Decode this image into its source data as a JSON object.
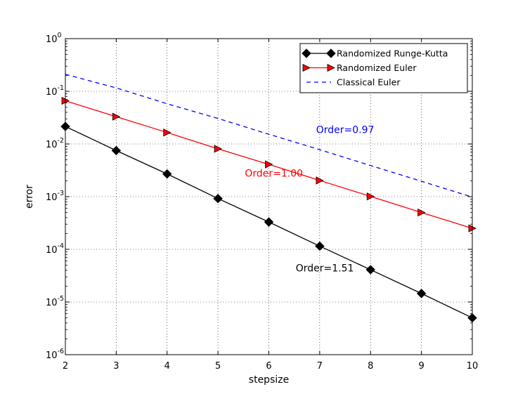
{
  "chart_data": {
    "type": "line",
    "title": "",
    "xlabel": "stepsize",
    "ylabel": "error",
    "xlim": [
      2,
      10
    ],
    "ylim": [
      1e-06,
      1
    ],
    "yscale": "log",
    "grid": true,
    "legend_position": "top-right",
    "x_ticks": [
      "2",
      "3",
      "4",
      "5",
      "6",
      "7",
      "8",
      "9",
      "10"
    ],
    "y_ticks": [
      {
        "base": "10",
        "exp": "-6",
        "value": 1e-06
      },
      {
        "base": "10",
        "exp": "-5",
        "value": 1e-05
      },
      {
        "base": "10",
        "exp": "-4",
        "value": 0.0001
      },
      {
        "base": "10",
        "exp": "-3",
        "value": 0.001
      },
      {
        "base": "10",
        "exp": "-2",
        "value": 0.01
      },
      {
        "base": "10",
        "exp": "-1",
        "value": 0.1
      },
      {
        "base": "10",
        "exp": "0",
        "value": 1
      }
    ],
    "x": [
      2,
      3,
      4,
      5,
      6,
      7,
      8,
      9,
      10
    ],
    "series": [
      {
        "name": "Randomized Runge-Kutta",
        "color": "#000000",
        "marker": "diamond",
        "linestyle": "solid",
        "values": [
          0.0215,
          0.0075,
          0.0027,
          0.00092,
          0.00033,
          0.000115,
          4.1e-05,
          1.45e-05,
          5e-06
        ]
      },
      {
        "name": "Randomized Euler",
        "color": "#ff0000",
        "marker": "triangle-right",
        "linestyle": "solid",
        "values": [
          0.066,
          0.033,
          0.0165,
          0.0081,
          0.0041,
          0.00203,
          0.00101,
          0.0005,
          0.00025
        ]
      },
      {
        "name": "Classical Euler",
        "color": "#0000ff",
        "marker": "none",
        "linestyle": "dashed",
        "values": [
          0.21,
          0.116,
          0.058,
          0.0305,
          0.0153,
          0.0078,
          0.0039,
          0.00196,
          0.00098
        ]
      }
    ],
    "annotations": [
      {
        "text": "Order=0.97",
        "color": "#0000ff",
        "x": 7.5,
        "y": 0.016
      },
      {
        "text": "Order=1.00",
        "color": "#ff0000",
        "x": 6.1,
        "y": 0.0024
      },
      {
        "text": "Order=1.51",
        "color": "#000000",
        "x": 7.1,
        "y": 3.8e-05
      }
    ]
  }
}
